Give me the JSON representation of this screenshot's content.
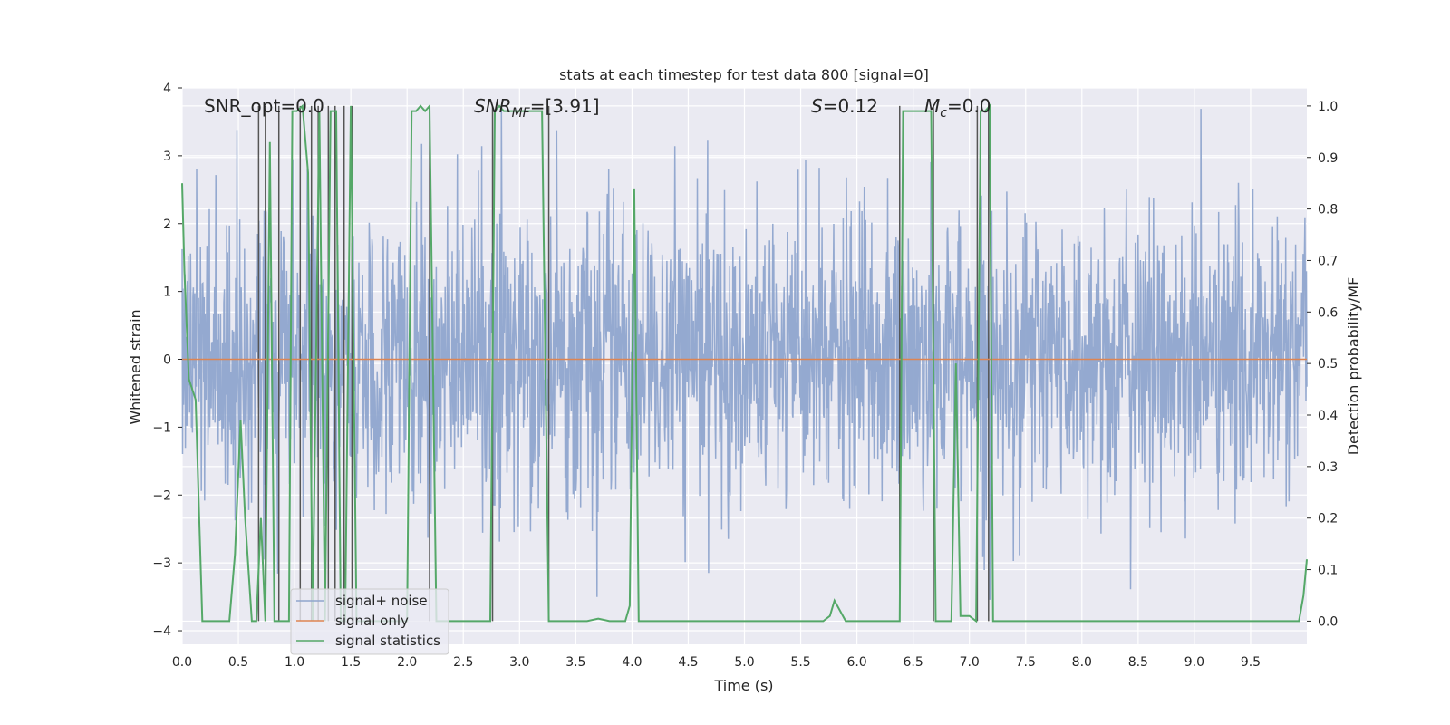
{
  "chart_data": {
    "type": "line",
    "title": "stats at each timestep for test data 800 [signal=0]",
    "xlabel": "Time (s)",
    "ylabel": "Whitened strain",
    "y2label": "Detection probability/MF",
    "xlim": [
      0,
      10
    ],
    "ylim": [
      -4.2,
      4.0
    ],
    "y2lim": [
      -0.045,
      1.035
    ],
    "grid": true,
    "legend_position": "lower-left",
    "x_ticks": [
      "0.0",
      "0.5",
      "1.0",
      "1.5",
      "2.0",
      "2.5",
      "3.0",
      "3.5",
      "4.0",
      "4.5",
      "5.0",
      "5.5",
      "6.0",
      "6.5",
      "7.0",
      "7.5",
      "8.0",
      "8.5",
      "9.0",
      "9.5"
    ],
    "y_ticks": [
      "4",
      "3",
      "2",
      "1",
      "0",
      "−1",
      "−2",
      "−3",
      "−4"
    ],
    "y2_ticks": [
      "1.0",
      "0.9",
      "0.8",
      "0.7",
      "0.6",
      "0.5",
      "0.4",
      "0.3",
      "0.2",
      "0.1",
      "0.0"
    ],
    "annotations": {
      "snr_opt": "SNR_opt=0.0",
      "snr_mf_sym": "SNR",
      "snr_mf_sub": "MF",
      "snr_mf_val": "=[3.91]",
      "s_sym": "S",
      "s_val": "=0.12",
      "mc_sym": "M",
      "mc_sub": "c",
      "mc_val": "=0.0"
    },
    "series": [
      {
        "name": "signal+ noise",
        "color": "#8fa5cd",
        "description": "dense whitened noise between about -1.6 and 1.9 with spikes up to about 3.7 and down to about -4.1"
      },
      {
        "name": "signal only",
        "color": "#dd8452",
        "values_constant": 0.0
      },
      {
        "name": "signal statistics",
        "color": "#55a868",
        "x": [
          0.0,
          0.02,
          0.06,
          0.12,
          0.18,
          0.24,
          0.3,
          0.36,
          0.42,
          0.47,
          0.52,
          0.56,
          0.62,
          0.66,
          0.7,
          0.74,
          0.78,
          0.82,
          0.86,
          0.9,
          0.95,
          0.98,
          1.02,
          1.07,
          1.12,
          1.16,
          1.22,
          1.27,
          1.32,
          1.37,
          1.41,
          1.45,
          1.5,
          1.55,
          1.6,
          1.65,
          1.7,
          1.8,
          1.9,
          2.0,
          2.04,
          2.08,
          2.12,
          2.16,
          2.2,
          2.26,
          2.32,
          2.4,
          2.5,
          2.6,
          2.68,
          2.74,
          2.78,
          2.82,
          2.86,
          2.9,
          3.0,
          3.1,
          3.2,
          3.26,
          3.3,
          3.36,
          3.4,
          3.5,
          3.6,
          3.7,
          3.8,
          3.88,
          3.94,
          3.98,
          4.02,
          4.06,
          4.1,
          4.2,
          4.4,
          4.8,
          5.2,
          5.6,
          5.7,
          5.76,
          5.8,
          5.85,
          5.9,
          6.0,
          6.2,
          6.38,
          6.41,
          6.46,
          6.5,
          6.6,
          6.66,
          6.7,
          6.74,
          6.8,
          6.84,
          6.88,
          6.92,
          7.0,
          7.06,
          7.1,
          7.14,
          7.18,
          7.21,
          7.24,
          7.26,
          7.4,
          8.0,
          8.5,
          9.0,
          9.5,
          9.8,
          9.93,
          9.97,
          10.0
        ],
        "values": [
          0.85,
          0.68,
          0.47,
          0.43,
          0.0,
          0.0,
          0.0,
          0.0,
          0.0,
          0.13,
          0.39,
          0.2,
          0.0,
          0.0,
          0.2,
          0.0,
          0.93,
          0.0,
          0.0,
          0.0,
          0.0,
          0.99,
          0.99,
          1.0,
          0.87,
          0.0,
          0.99,
          0.0,
          0.99,
          0.99,
          0.0,
          0.0,
          1.0,
          0.0,
          0.0,
          0.0,
          0.0,
          0.0,
          0.0,
          0.0,
          0.99,
          0.99,
          1.0,
          0.99,
          1.0,
          0.0,
          0.0,
          0.0,
          0.0,
          0.0,
          0.0,
          0.0,
          0.99,
          1.0,
          0.99,
          0.99,
          0.99,
          0.99,
          0.99,
          0.0,
          0.0,
          0.0,
          0.0,
          0.0,
          0.0,
          0.005,
          0.0,
          0.0,
          0.0,
          0.03,
          0.84,
          0.0,
          0.0,
          0.0,
          0.0,
          0.0,
          0.0,
          0.0,
          0.0,
          0.01,
          0.04,
          0.02,
          0.0,
          0.0,
          0.0,
          0.0,
          0.99,
          0.99,
          0.99,
          0.99,
          0.99,
          0.0,
          0.0,
          0.0,
          0.0,
          0.5,
          0.01,
          0.01,
          0.0,
          0.99,
          0.99,
          1.0,
          0.0,
          0.0,
          0.0,
          0.0,
          0.0,
          0.0,
          0.0,
          0.0,
          0.0,
          0.0,
          0.05,
          0.12
        ]
      }
    ],
    "vertical_lines_x": [
      0.68,
      0.74,
      0.86,
      1.05,
      1.15,
      1.21,
      1.3,
      1.36,
      1.44,
      1.51,
      2.2,
      2.76,
      3.26,
      6.38,
      6.68,
      7.07,
      7.17
    ]
  }
}
